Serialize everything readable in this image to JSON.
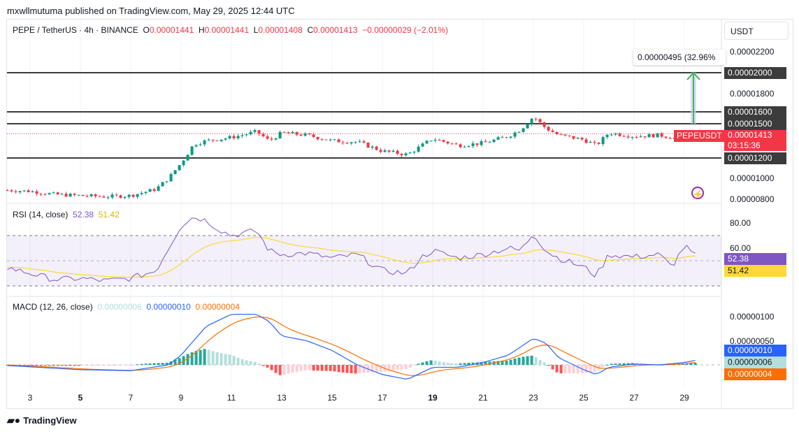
{
  "published": "mxwllmutuma published on TradingView.com, May 29, 2025 12:44 UTC",
  "legend": {
    "symbol": "PEPE / TetherUS · 4h · BINANCE",
    "o_label": "O",
    "o": "0.00001441",
    "h_label": "H",
    "h": "0.00001441",
    "l_label": "L",
    "l": "0.00001408",
    "c_label": "C",
    "c": "0.00001413",
    "change": "−0.00000029 (−2.01%)"
  },
  "currency": "USDT",
  "price_labels": [
    "0.00002200",
    "0.00001800",
    "0.00001000",
    "0.00000800"
  ],
  "level_tags": [
    "0.00002000",
    "0.00001600",
    "0.00001500",
    "0.00001200"
  ],
  "last_price": {
    "symbol": "PEPEUSDT",
    "price": "0.00001413",
    "countdown": "03:15:36"
  },
  "measure": {
    "label": "0.00000495 (32.96%"
  },
  "rsi": {
    "title": "RSI (14, close)",
    "value": "52.38",
    "ma": "51.42",
    "labels": [
      "80.00",
      "60.00"
    ]
  },
  "macd": {
    "title": "MACD (12, 26, close)",
    "hist": "0.00000006",
    "macd": "0.00000010",
    "signal": "0.00000004",
    "labels": [
      "0.00000100",
      "0.00000050"
    ]
  },
  "x_labels": [
    "3",
    "5",
    "7",
    "9",
    "11",
    "13",
    "15",
    "17",
    "19",
    "21",
    "23",
    "25",
    "27",
    "29"
  ],
  "footer": "TradingView",
  "colors": {
    "up": "#089981",
    "down": "#f23645",
    "rsi": "#7e57c2",
    "rsi_ma": "#fdd835",
    "macd": "#2962ff",
    "signal": "#ff6d00"
  },
  "chart_data": {
    "type": "candlestick",
    "x_unit": "day of May 2025",
    "price_1e-6": {
      "x": [
        2,
        3,
        4,
        5,
        6,
        7,
        8,
        8.5,
        9,
        9.5,
        10,
        11,
        12,
        12.5,
        13,
        14,
        15,
        16,
        17,
        18,
        18.5,
        19,
        20,
        21,
        22,
        22.5,
        23,
        23.5,
        24,
        25,
        25.5,
        26,
        27,
        28,
        29,
        29.5
      ],
      "y": [
        8.9,
        8.8,
        8.5,
        8.4,
        8.3,
        8.4,
        9.0,
        10.0,
        11.5,
        13.2,
        13.5,
        13.8,
        14.3,
        13.5,
        14.2,
        14.0,
        13.5,
        13.4,
        12.6,
        12.3,
        13.0,
        13.7,
        13.1,
        13.3,
        13.9,
        14.5,
        15.6,
        14.6,
        14.0,
        13.6,
        13.1,
        14.2,
        13.9,
        14.0,
        13.6,
        14.13
      ]
    },
    "horizontal_levels": [
      2e-05,
      1.6e-05,
      1.5e-05,
      1.2e-05
    ],
    "rsi": {
      "x": [
        2,
        3,
        4,
        5,
        6,
        7,
        8,
        8.5,
        9,
        9.5,
        10,
        10.5,
        11,
        12,
        12.5,
        13,
        14,
        15,
        16,
        17,
        18,
        18.5,
        19,
        20,
        21,
        22,
        22.5,
        23,
        23.5,
        24,
        25,
        25.5,
        26,
        27,
        28,
        28.5,
        29,
        29.5
      ],
      "y": [
        45,
        40,
        35,
        36,
        34,
        36,
        42,
        60,
        78,
        85,
        82,
        75,
        70,
        74,
        58,
        55,
        56,
        52,
        55,
        42,
        40,
        52,
        58,
        52,
        55,
        60,
        58,
        72,
        58,
        52,
        45,
        38,
        55,
        53,
        55,
        45,
        62,
        52.38
      ]
    },
    "macd_1e-8": {
      "x": [
        2,
        5,
        7,
        8.5,
        9,
        10,
        11,
        12,
        12.5,
        13,
        14,
        15,
        16,
        17,
        18,
        19,
        20,
        21,
        22,
        23,
        23.5,
        24,
        25,
        25.5,
        26,
        27,
        28,
        29,
        29.5
      ],
      "y": [
        -1,
        -10,
        -12,
        0,
        20,
        80,
        105,
        105,
        90,
        60,
        50,
        30,
        0,
        -20,
        -30,
        -5,
        -5,
        5,
        20,
        55,
        45,
        15,
        -10,
        -20,
        -5,
        2,
        0,
        5,
        10
      ]
    }
  }
}
